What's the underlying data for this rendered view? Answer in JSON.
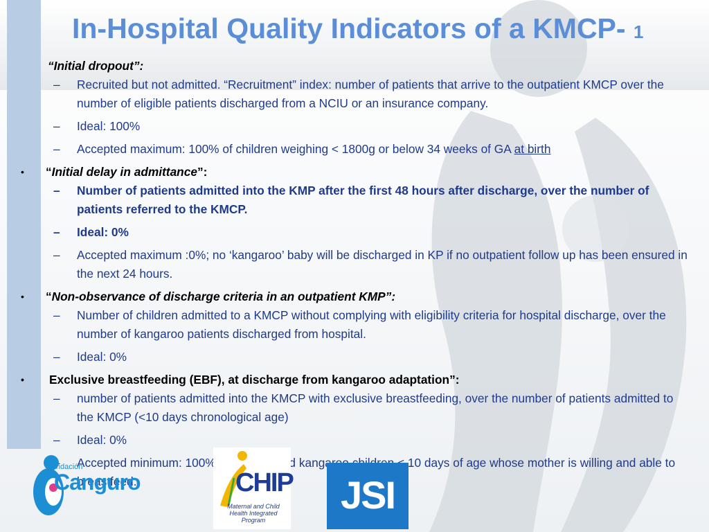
{
  "title": {
    "text": "In-Hospital Quality Indicators of a KMCP-",
    "number": "1"
  },
  "sections": {
    "initial_dropout": {
      "heading": "“Initial dropout”:",
      "items": [
        "Recruited but not admitted.  “Recruitment” index: number of patients that arrive to the outpatient KMCP over the number of eligible patients discharged from a NCIU or an insurance company.",
        "Ideal: 100%",
        "Accepted maximum: 100% of children weighing < 1800g or below 34 weeks of GA "
      ],
      "underlined_tail": " at birth"
    },
    "initial_delay": {
      "heading_open": "“",
      "heading": "Initial delay in admittance",
      "heading_close": "”:",
      "items": [
        "Number of patients admitted into the KMP after the first 48 hours after discharge, over the number of patients referred to the KMCP.",
        "Ideal: 0%",
        "Accepted maximum :0%; no ‘kangaroo’ baby will be discharged in KP if no outpatient follow up has been ensured in the next 24 hours."
      ]
    },
    "non_observance": {
      "heading_open": "“",
      "heading": "Non-observance of discharge criteria in an outpatient KMP”:",
      "items": [
        "Number of children admitted to a KMCP without complying with eligibility criteria for hospital discharge, over the number of kangaroo patients discharged from hospital.",
        "Ideal: 0%"
      ]
    },
    "ebf": {
      "heading": "Exclusive breastfeeding (EBF), at discharge from kangaroo adaptation”:",
      "items": [
        "number of patients admitted into the KMCP with exclusive breastfeeding, over the number of patients admitted to the KMCP (<10 days chronological age)",
        "Ideal: 0%",
        "Accepted minimum: 100% of hospitalized kangaroo children < 10 days of age  whose mother is willing and able to breastfeed."
      ]
    }
  },
  "markers": {
    "bullet": "•",
    "dash": "–"
  },
  "logos": {
    "canguro_small": "Fundación",
    "canguro_name": "Canguro",
    "chip_name": "CHIP",
    "chip_subtitle": "Maternal and Child Health Integrated Program",
    "jsi_name": "JSI"
  },
  "colors": {
    "title": "#5b8ed6",
    "body_text": "#1f3a8a",
    "left_bar": "#b8cce4",
    "watermark": "#d3d8de",
    "jsi_blue": "#1e78c8",
    "canguro_blue": "#1c8fd4"
  }
}
